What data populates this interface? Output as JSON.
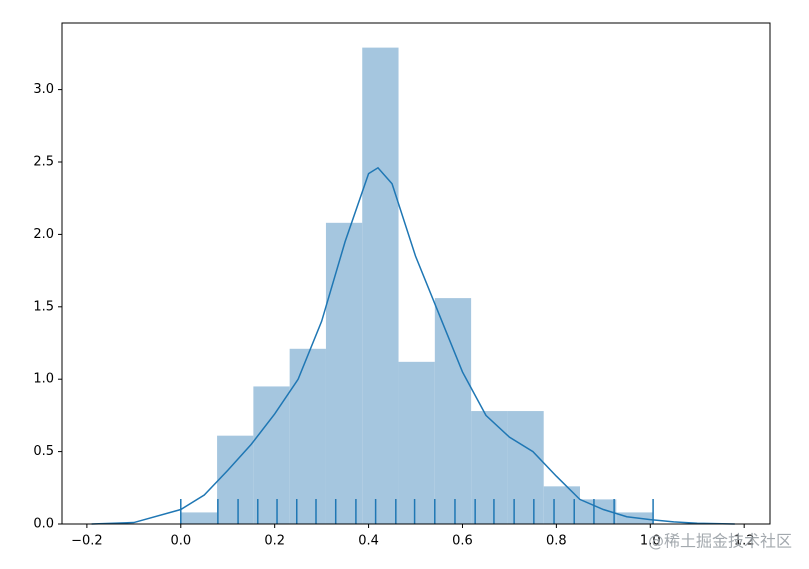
{
  "chart_data": {
    "type": "histogram",
    "bins": [
      0,
      0.0773,
      0.1546,
      0.2319,
      0.3092,
      0.3865,
      0.4638,
      0.5411,
      0.6184,
      0.6957,
      0.773,
      0.8503,
      0.9276,
      1.005
    ],
    "values": [
      0.08,
      0.61,
      0.95,
      1.21,
      2.08,
      3.29,
      1.12,
      1.56,
      0.78,
      0.78,
      0.26,
      0.17,
      0.08
    ],
    "color": "#a5c6df",
    "kde": {
      "color": "#1f77b4",
      "x": [
        -0.19,
        -0.1,
        0,
        0.05,
        0.1,
        0.15,
        0.2,
        0.25,
        0.3,
        0.35,
        0.4,
        0.42,
        0.45,
        0.5,
        0.55,
        0.6,
        0.65,
        0.7,
        0.75,
        0.8,
        0.85,
        0.9,
        0.95,
        1.0,
        1.05,
        1.1,
        1.18
      ],
      "y": [
        0,
        0.01,
        0.1,
        0.2,
        0.37,
        0.55,
        0.76,
        1.0,
        1.4,
        1.95,
        2.42,
        2.46,
        2.35,
        1.85,
        1.45,
        1.05,
        0.75,
        0.6,
        0.5,
        0.33,
        0.17,
        0.1,
        0.05,
        0.03,
        0.015,
        0.005,
        0
      ]
    },
    "rug": {
      "color": "#1f77b4",
      "x": [
        0.0,
        0.079,
        0.122,
        0.164,
        0.205,
        0.247,
        0.288,
        0.33,
        0.373,
        0.415,
        0.458,
        0.498,
        0.541,
        0.584,
        0.627,
        0.667,
        0.71,
        0.752,
        0.795,
        0.838,
        0.88,
        0.923,
        1.006
      ]
    },
    "xlim": [
      -0.253,
      1.255
    ],
    "ylim": [
      0,
      3.46
    ],
    "xticks": [
      {
        "value": -0.2,
        "label": "−0.2"
      },
      {
        "value": 0,
        "label": "0.0"
      },
      0.2,
      0.4,
      0.6,
      0.8,
      {
        "value": 1,
        "label": "1.0"
      },
      1.2
    ],
    "yticks": [
      {
        "value": 0,
        "label": "0.0"
      },
      0.5,
      {
        "value": 1,
        "label": "1.0"
      },
      1.5,
      {
        "value": 2,
        "label": "2.0"
      },
      2.5,
      {
        "value": 3,
        "label": "3.0"
      }
    ],
    "watermark": "@稀土掘金技术社区"
  }
}
